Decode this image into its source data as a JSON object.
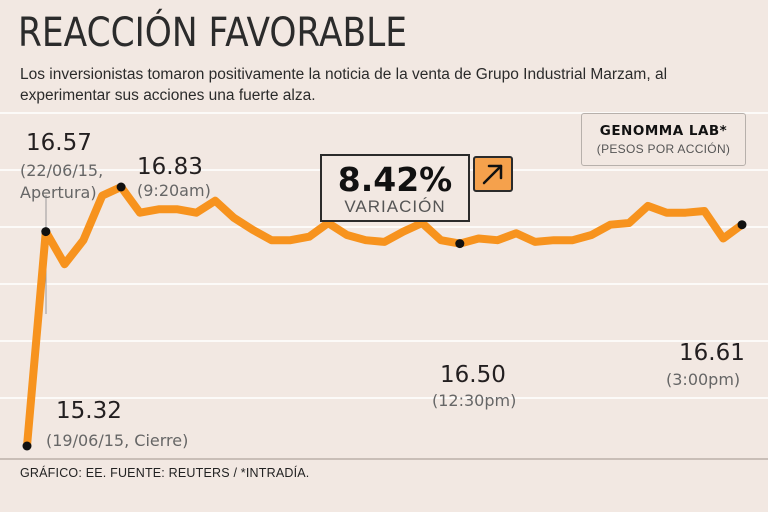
{
  "header": {
    "title": "REACCIÓN FAVORABLE",
    "subtitle": "Los inversionistas tomaron positivamente la noticia de la venta de Grupo Industrial Marzam, al experimentar sus acciones una fuerte alza."
  },
  "legend": {
    "title": "GENOMMA LAB*",
    "subtitle": "(PESOS POR ACCIÓN)"
  },
  "variation": {
    "value": "8.42%",
    "label": "VARIACIÓN",
    "icon": "arrow-up-right-icon"
  },
  "footer": {
    "source": "GRÁFICO: EE. FUENTE: REUTERS / *INTRADÍA."
  },
  "colors": {
    "line": "#f7931e",
    "background": "#f2e8e2",
    "grid": "#ffffff",
    "marker": "#111111",
    "accent_box": "#f5a14c"
  },
  "chart_data": {
    "type": "line",
    "title": "GENOMMA LAB*",
    "ylabel": "(PESOS POR ACCIÓN)",
    "ylim": [
      15.25,
      16.92
    ],
    "grid": true,
    "series": [
      {
        "name": "Genomma Lab",
        "values": [
          15.32,
          16.57,
          16.38,
          16.52,
          16.78,
          16.83,
          16.68,
          16.7,
          16.7,
          16.68,
          16.75,
          16.65,
          16.58,
          16.52,
          16.52,
          16.54,
          16.62,
          16.55,
          16.52,
          16.51,
          16.57,
          16.62,
          16.52,
          16.5,
          16.53,
          16.52,
          16.56,
          16.51,
          16.52,
          16.52,
          16.55,
          16.61,
          16.62,
          16.72,
          16.68,
          16.68,
          16.69,
          16.53,
          16.61
        ]
      }
    ],
    "annotations": [
      {
        "index": 0,
        "value": "15.32",
        "label": "(19/06/15, Cierre)"
      },
      {
        "index": 1,
        "value": "16.57",
        "label_line1": "(22/06/15,",
        "label_line2": "Apertura)"
      },
      {
        "index": 5,
        "value": "16.83",
        "label": "(9:20am)"
      },
      {
        "index": 23,
        "value": "16.50",
        "label": "(12:30pm)"
      },
      {
        "index": 38,
        "value": "16.61",
        "label": "(3:00pm)"
      }
    ]
  }
}
